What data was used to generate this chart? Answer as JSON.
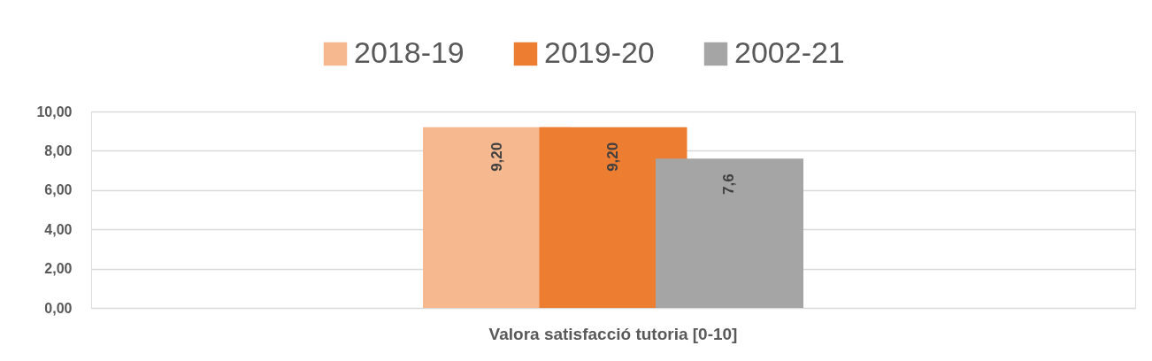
{
  "chart_data": {
    "type": "bar",
    "categories": [
      "Valora satisfacció tutoria [0-10]"
    ],
    "series": [
      {
        "name": "2018-19",
        "color": "#f5b88f",
        "values": [
          9.2
        ],
        "value_labels": [
          "9,20"
        ]
      },
      {
        "name": "2019-20",
        "color": "#ed7d31",
        "values": [
          9.2
        ],
        "value_labels": [
          "9,20"
        ]
      },
      {
        "name": "2002-21",
        "color": "#a5a5a5",
        "values": [
          7.6
        ],
        "value_labels": [
          "7,6"
        ]
      }
    ],
    "ylim": [
      0,
      10
    ],
    "yticks": [
      {
        "value": 0,
        "label": "0,00"
      },
      {
        "value": 2,
        "label": "2,00"
      },
      {
        "value": 4,
        "label": "4,00"
      },
      {
        "value": 6,
        "label": "6,00"
      },
      {
        "value": 8,
        "label": "8,00"
      },
      {
        "value": 10,
        "label": "10,00"
      }
    ],
    "grid": "y",
    "legend": "top"
  }
}
